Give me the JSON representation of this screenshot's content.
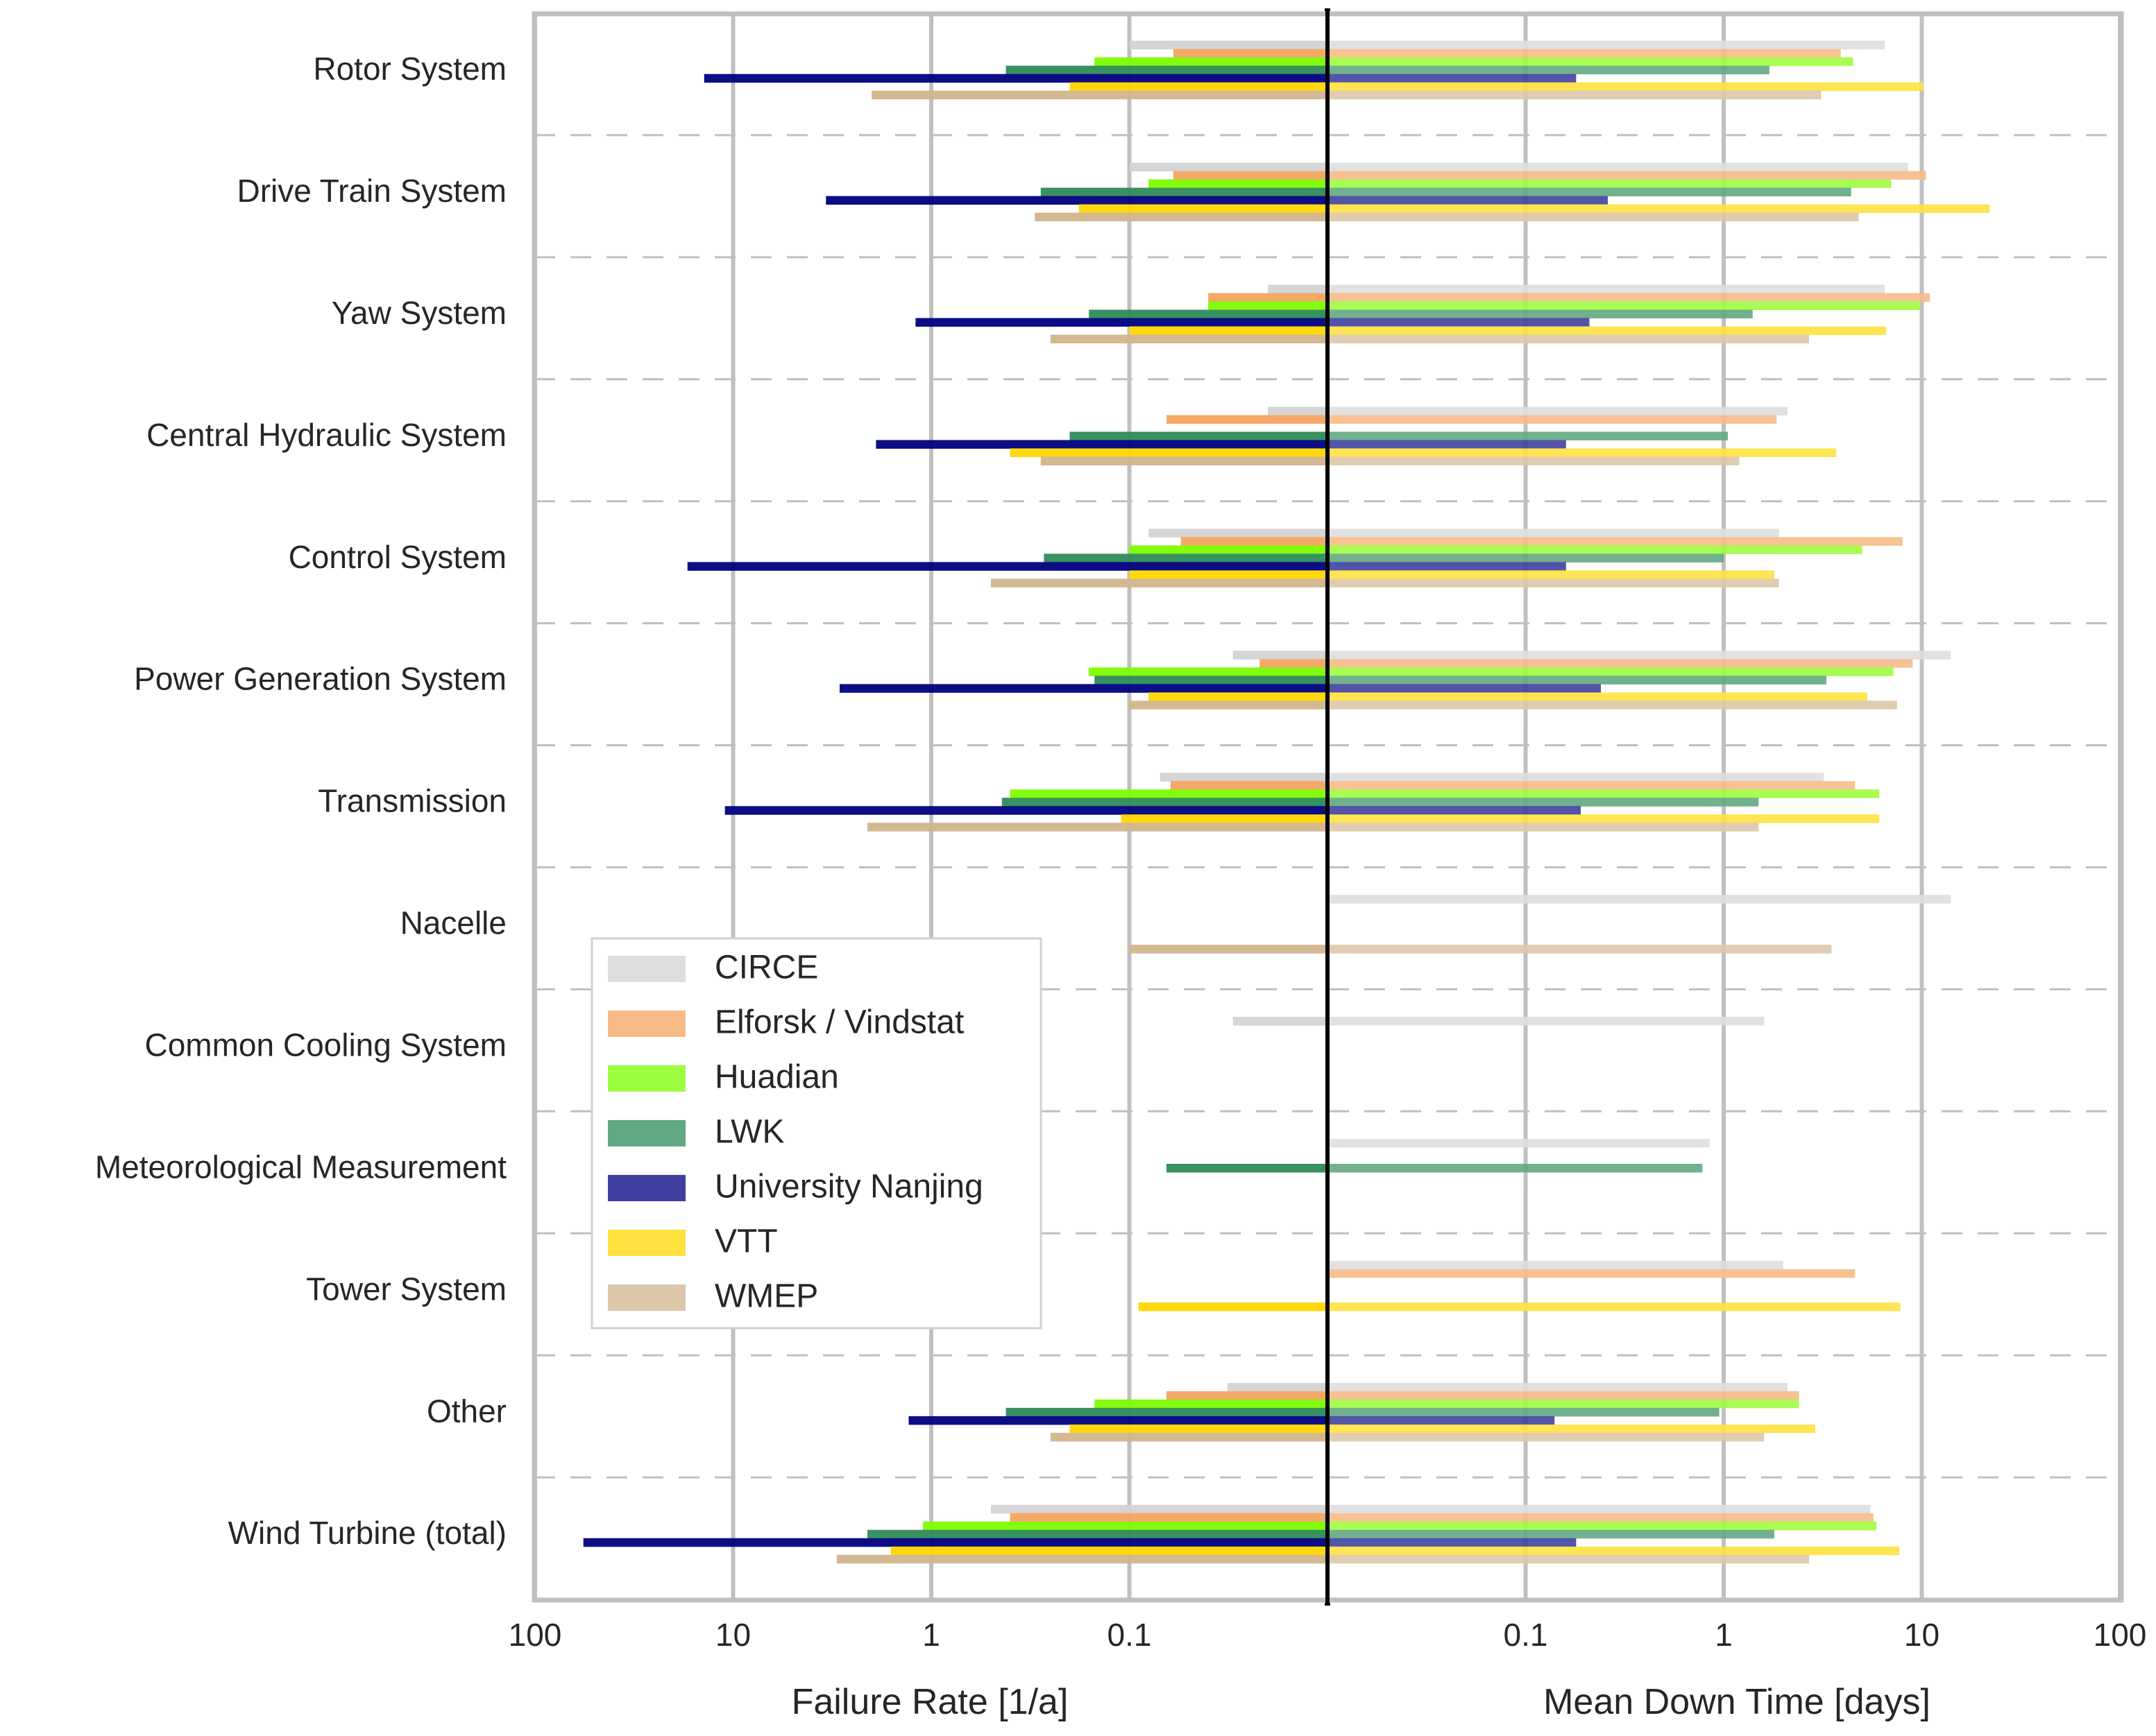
{
  "chart_data": {
    "type": "bar",
    "orientation": "horizontal",
    "layout": "mirrored-log-panels",
    "categories": [
      "Rotor System",
      "Drive Train System",
      "Yaw System",
      "Central Hydraulic System",
      "Control System",
      "Power Generation System",
      "Transmission",
      "Nacelle",
      "Common Cooling System",
      "Meteorological Measurement",
      "Tower System",
      "Other",
      "Wind Turbine (total)"
    ],
    "left_panel": {
      "xlabel": "Failure Rate [1/a]",
      "scale": "log",
      "direction": "reversed",
      "xlim": [
        0.01,
        100
      ],
      "ticks": [
        100,
        10,
        1,
        0.1
      ],
      "tick_labels": [
        "100",
        "10",
        "1",
        "0.1"
      ]
    },
    "right_panel": {
      "xlabel": "Mean Down Time [days]",
      "scale": "log",
      "xlim": [
        0.01,
        100
      ],
      "ticks": [
        0.1,
        1,
        10,
        100
      ],
      "tick_labels": [
        "0.1",
        "1",
        "10",
        "100"
      ]
    },
    "grid": true,
    "legend_position": "center-left",
    "series": [
      {
        "name": "CIRCE",
        "color": "#d3d3d3",
        "failure_rate": [
          0.1,
          0.1,
          0.02,
          0.02,
          0.08,
          0.03,
          0.07,
          null,
          0.03,
          null,
          null,
          0.032,
          0.5
        ],
        "mean_down_time": [
          6.5,
          8.5,
          6.5,
          2.1,
          1.9,
          14,
          3.2,
          14,
          1.6,
          0.85,
          2.0,
          2.1,
          5.5
        ]
      },
      {
        "name": "Elforsk / Vindstat",
        "color": "#f4a460",
        "failure_rate": [
          0.06,
          0.06,
          0.04,
          0.065,
          0.055,
          0.022,
          0.062,
          null,
          null,
          null,
          null,
          0.065,
          0.4
        ],
        "mean_down_time": [
          3.9,
          10.5,
          11,
          1.85,
          8,
          9,
          4.6,
          null,
          null,
          null,
          4.6,
          2.4,
          5.7
        ]
      },
      {
        "name": "Huadian",
        "color": "#7cfc00",
        "failure_rate": [
          0.15,
          0.08,
          0.04,
          null,
          0.1,
          0.16,
          0.4,
          null,
          null,
          null,
          null,
          0.15,
          1.1
        ],
        "mean_down_time": [
          4.5,
          7.0,
          9.8,
          null,
          5.0,
          7.2,
          6.1,
          null,
          null,
          null,
          null,
          2.4,
          5.9
        ]
      },
      {
        "name": "LWK",
        "color": "#2e8b57",
        "failure_rate": [
          0.42,
          0.28,
          0.16,
          0.2,
          0.27,
          0.15,
          0.44,
          null,
          null,
          0.065,
          null,
          0.42,
          2.1
        ],
        "mean_down_time": [
          1.7,
          4.4,
          1.4,
          1.05,
          1.0,
          3.3,
          1.5,
          null,
          null,
          0.78,
          null,
          0.95,
          1.8
        ]
      },
      {
        "name": "University Nanjing",
        "color": "#000080",
        "failure_rate": [
          14,
          3.4,
          1.2,
          1.9,
          17,
          2.9,
          11,
          null,
          null,
          null,
          null,
          1.3,
          57
        ],
        "mean_down_time": [
          0.18,
          0.26,
          0.21,
          0.16,
          0.16,
          0.24,
          0.19,
          null,
          null,
          null,
          null,
          0.14,
          0.18
        ]
      },
      {
        "name": "VTT",
        "color": "#ffd700",
        "failure_rate": [
          0.2,
          0.18,
          0.1,
          0.4,
          0.1,
          0.08,
          0.11,
          null,
          null,
          null,
          0.09,
          0.2,
          1.6
        ],
        "mean_down_time": [
          10.2,
          22,
          6.6,
          3.7,
          1.8,
          5.3,
          6.1,
          null,
          null,
          null,
          7.8,
          2.9,
          7.7
        ]
      },
      {
        "name": "WMEP",
        "color": "#d2b48c",
        "failure_rate": [
          2.0,
          0.3,
          0.25,
          0.28,
          0.5,
          0.1,
          2.1,
          0.1,
          null,
          null,
          null,
          0.25,
          3.0
        ],
        "mean_down_time": [
          3.1,
          4.8,
          2.7,
          1.2,
          1.9,
          7.5,
          1.5,
          3.5,
          null,
          null,
          null,
          1.6,
          2.7
        ]
      }
    ]
  }
}
